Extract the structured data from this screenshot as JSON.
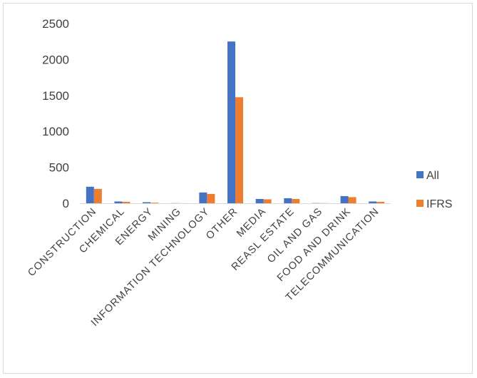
{
  "chart_data": {
    "type": "bar",
    "title": "",
    "xlabel": "",
    "ylabel": "",
    "ylim": [
      0,
      2500
    ],
    "yticks": [
      0,
      500,
      1000,
      1500,
      2000,
      2500
    ],
    "grid": false,
    "legend_position": "right",
    "categories": [
      "CONSTRUCTION",
      "CHEMICAL",
      "ENERGY",
      "MINING",
      "INFORMATION TECHNOLOGY",
      "OTHER",
      "MEDIA",
      "REASL ESTATE",
      "OIL AND GAS",
      "FOOD AND DRINK",
      "TELECOMMUNICATION"
    ],
    "series": [
      {
        "name": "All",
        "color": "#4472c4",
        "values": [
          230,
          25,
          15,
          2,
          150,
          2250,
          60,
          70,
          3,
          100,
          25
        ]
      },
      {
        "name": "IFRS",
        "color": "#ed7d31",
        "values": [
          200,
          20,
          8,
          1,
          130,
          1475,
          55,
          60,
          2,
          85,
          20
        ]
      }
    ]
  }
}
